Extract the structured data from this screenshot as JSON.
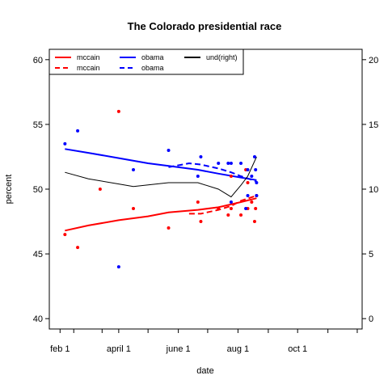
{
  "chart_data": {
    "type": "scatter",
    "title": "The Colorado presidential race",
    "xlabel": "date",
    "ylabel": "percent",
    "x_axis": {
      "type": "date",
      "range": [
        "2008-01-21",
        "2008-12-06"
      ],
      "ticks": [
        "2008-02-01",
        "2008-02-15",
        "2008-03-15",
        "2008-04-01",
        "2008-05-01",
        "2008-06-01",
        "2008-07-01",
        "2008-08-01",
        "2008-09-01",
        "2008-10-01",
        "2008-11-01",
        "2008-12-01"
      ],
      "tick_labels": [
        {
          "date": "2008-02-01",
          "label": "feb 1"
        },
        {
          "date": "2008-04-01",
          "label": "april 1"
        },
        {
          "date": "2008-06-01",
          "label": "june 1"
        },
        {
          "date": "2008-08-01",
          "label": "aug 1"
        },
        {
          "date": "2008-10-01",
          "label": "oct 1"
        }
      ]
    },
    "y_left": {
      "range": [
        39.2,
        60.8
      ],
      "ticks": [
        40,
        45,
        50,
        55,
        60
      ]
    },
    "y_right": {
      "range": [
        -0.8,
        20.8
      ],
      "ticks": [
        0,
        5,
        10,
        15,
        20
      ]
    },
    "grid": false,
    "legend": {
      "position": "top-left",
      "entries": [
        {
          "label": "mccain",
          "color": "#ff0000",
          "style": "solid"
        },
        {
          "label": "mccain",
          "color": "#ff0000",
          "style": "dashed"
        },
        {
          "label": "obama",
          "color": "#0000ff",
          "style": "solid"
        },
        {
          "label": "obama",
          "color": "#0000ff",
          "style": "dashed"
        },
        {
          "label": "und(right)",
          "color": "#000000",
          "style": "solid"
        }
      ]
    },
    "series": [
      {
        "name": "mccain",
        "kind": "points",
        "color": "#ff0000",
        "points": [
          {
            "x": "2008-02-06",
            "y": 46.5
          },
          {
            "x": "2008-02-19",
            "y": 45.5
          },
          {
            "x": "2008-03-13",
            "y": 50.0
          },
          {
            "x": "2008-04-01",
            "y": 56.0
          },
          {
            "x": "2008-04-16",
            "y": 48.5
          },
          {
            "x": "2008-05-22",
            "y": 47.0
          },
          {
            "x": "2008-06-21",
            "y": 49.0
          },
          {
            "x": "2008-06-24",
            "y": 47.5
          },
          {
            "x": "2008-07-12",
            "y": 48.5
          },
          {
            "x": "2008-07-22",
            "y": 48.0
          },
          {
            "x": "2008-07-25",
            "y": 48.5
          },
          {
            "x": "2008-07-25",
            "y": 51.0
          },
          {
            "x": "2008-08-04",
            "y": 48.0
          },
          {
            "x": "2008-08-09",
            "y": 51.5
          },
          {
            "x": "2008-08-11",
            "y": 50.5
          },
          {
            "x": "2008-08-11",
            "y": 48.5
          },
          {
            "x": "2008-08-15",
            "y": 49.0
          },
          {
            "x": "2008-08-18",
            "y": 47.5
          },
          {
            "x": "2008-08-19",
            "y": 48.5
          },
          {
            "x": "2008-08-20",
            "y": 49.5
          }
        ]
      },
      {
        "name": "obama",
        "kind": "points",
        "color": "#0000ff",
        "points": [
          {
            "x": "2008-02-06",
            "y": 53.5
          },
          {
            "x": "2008-02-19",
            "y": 54.5
          },
          {
            "x": "2008-04-01",
            "y": 44.0
          },
          {
            "x": "2008-04-16",
            "y": 51.5
          },
          {
            "x": "2008-05-22",
            "y": 53.0
          },
          {
            "x": "2008-06-21",
            "y": 51.0
          },
          {
            "x": "2008-06-24",
            "y": 52.5
          },
          {
            "x": "2008-07-12",
            "y": 52.0
          },
          {
            "x": "2008-07-22",
            "y": 52.0
          },
          {
            "x": "2008-07-25",
            "y": 49.0
          },
          {
            "x": "2008-07-25",
            "y": 52.0
          },
          {
            "x": "2008-08-04",
            "y": 52.0
          },
          {
            "x": "2008-08-09",
            "y": 48.5
          },
          {
            "x": "2008-08-11",
            "y": 51.5
          },
          {
            "x": "2008-08-11",
            "y": 49.5
          },
          {
            "x": "2008-08-15",
            "y": 51.0
          },
          {
            "x": "2008-08-18",
            "y": 52.5
          },
          {
            "x": "2008-08-19",
            "y": 51.5
          },
          {
            "x": "2008-08-20",
            "y": 50.5
          },
          {
            "x": "2008-08-20",
            "y": 49.5
          }
        ]
      },
      {
        "name": "mccain",
        "kind": "line",
        "axis": "left",
        "color": "#ff0000",
        "style": "solid",
        "points": [
          {
            "x": "2008-02-06",
            "y": 46.8
          },
          {
            "x": "2008-03-01",
            "y": 47.2
          },
          {
            "x": "2008-04-01",
            "y": 47.6
          },
          {
            "x": "2008-05-01",
            "y": 47.9
          },
          {
            "x": "2008-05-22",
            "y": 48.2
          },
          {
            "x": "2008-06-21",
            "y": 48.4
          },
          {
            "x": "2008-07-12",
            "y": 48.6
          },
          {
            "x": "2008-08-04",
            "y": 49.0
          },
          {
            "x": "2008-08-20",
            "y": 49.3
          }
        ]
      },
      {
        "name": "mccain",
        "kind": "line",
        "axis": "left",
        "color": "#ff0000",
        "style": "dashed",
        "points": [
          {
            "x": "2008-06-12",
            "y": 48.1
          },
          {
            "x": "2008-06-24",
            "y": 48.1
          },
          {
            "x": "2008-07-12",
            "y": 48.4
          },
          {
            "x": "2008-07-25",
            "y": 48.7
          },
          {
            "x": "2008-08-04",
            "y": 49.1
          },
          {
            "x": "2008-08-20",
            "y": 49.5
          }
        ]
      },
      {
        "name": "obama",
        "kind": "line",
        "axis": "left",
        "color": "#0000ff",
        "style": "solid",
        "points": [
          {
            "x": "2008-02-06",
            "y": 53.1
          },
          {
            "x": "2008-03-01",
            "y": 52.8
          },
          {
            "x": "2008-04-01",
            "y": 52.4
          },
          {
            "x": "2008-05-01",
            "y": 52.0
          },
          {
            "x": "2008-05-22",
            "y": 51.8
          },
          {
            "x": "2008-06-21",
            "y": 51.5
          },
          {
            "x": "2008-07-12",
            "y": 51.2
          },
          {
            "x": "2008-08-04",
            "y": 50.9
          },
          {
            "x": "2008-08-20",
            "y": 50.7
          }
        ]
      },
      {
        "name": "obama",
        "kind": "line",
        "axis": "left",
        "color": "#0000ff",
        "style": "dashed",
        "points": [
          {
            "x": "2008-05-22",
            "y": 51.7
          },
          {
            "x": "2008-06-12",
            "y": 52.0
          },
          {
            "x": "2008-06-24",
            "y": 51.9
          },
          {
            "x": "2008-07-12",
            "y": 51.6
          },
          {
            "x": "2008-07-25",
            "y": 51.3
          },
          {
            "x": "2008-08-04",
            "y": 51.0
          },
          {
            "x": "2008-08-20",
            "y": 50.6
          }
        ]
      },
      {
        "name": "und(right)",
        "kind": "line",
        "axis": "right",
        "color": "#000000",
        "style": "solid",
        "points": [
          {
            "x": "2008-02-06",
            "y": 11.3
          },
          {
            "x": "2008-03-01",
            "y": 10.8
          },
          {
            "x": "2008-04-01",
            "y": 10.4
          },
          {
            "x": "2008-04-16",
            "y": 10.2
          },
          {
            "x": "2008-05-22",
            "y": 10.5
          },
          {
            "x": "2008-06-21",
            "y": 10.5
          },
          {
            "x": "2008-07-12",
            "y": 10.0
          },
          {
            "x": "2008-07-25",
            "y": 9.4
          },
          {
            "x": "2008-08-04",
            "y": 10.3
          },
          {
            "x": "2008-08-11",
            "y": 11.0
          },
          {
            "x": "2008-08-20",
            "y": 12.5
          }
        ]
      }
    ]
  }
}
